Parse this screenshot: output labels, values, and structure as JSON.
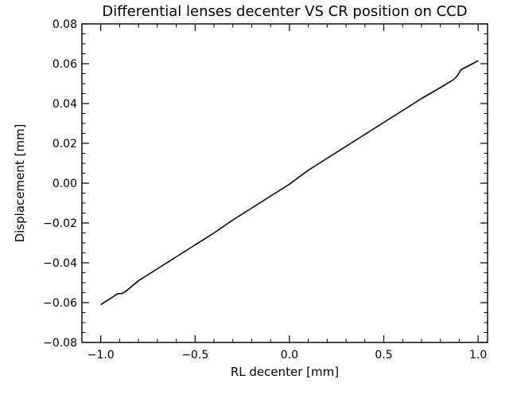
{
  "chart_data": {
    "type": "line",
    "title": "Differential lenses decenter VS CR position on CCD",
    "xlabel": "RL decenter [mm]",
    "ylabel": "Displacement [mm]",
    "xlim": [
      -1.1,
      1.05
    ],
    "ylim": [
      -0.08,
      0.08
    ],
    "x_ticks": [
      -1.0,
      -0.5,
      0.0,
      0.5,
      1.0
    ],
    "x_tick_labels": [
      "−1.0",
      "−0.5",
      "0.0",
      "0.5",
      "1.0"
    ],
    "y_ticks": [
      -0.08,
      -0.06,
      -0.04,
      -0.02,
      0.0,
      0.02,
      0.04,
      0.06,
      0.08
    ],
    "y_tick_labels": [
      "−0.08",
      "−0.06",
      "−0.04",
      "−0.02",
      "0.00",
      "0.02",
      "0.04",
      "0.06",
      "0.08"
    ],
    "x_minor_step": 0.1,
    "y_minor_step": 0.005,
    "grid": false,
    "legend": "none",
    "series": [
      {
        "color": "#000000",
        "x": [
          -1.0,
          -0.95,
          -0.91,
          -0.89,
          -0.87,
          -0.8,
          -0.7,
          -0.6,
          -0.5,
          -0.4,
          -0.3,
          -0.2,
          -0.1,
          0.0,
          0.1,
          0.2,
          0.3,
          0.4,
          0.5,
          0.6,
          0.7,
          0.8,
          0.87,
          0.89,
          0.91,
          0.95,
          1.0
        ],
        "y": [
          -0.061,
          -0.058,
          -0.0555,
          -0.0555,
          -0.0545,
          -0.049,
          -0.043,
          -0.037,
          -0.031,
          -0.025,
          -0.0185,
          -0.0125,
          -0.0065,
          -0.0005,
          0.0065,
          0.0125,
          0.0185,
          0.0245,
          0.0305,
          0.0365,
          0.0425,
          0.048,
          0.052,
          0.054,
          0.057,
          0.059,
          0.0615
        ]
      }
    ]
  }
}
